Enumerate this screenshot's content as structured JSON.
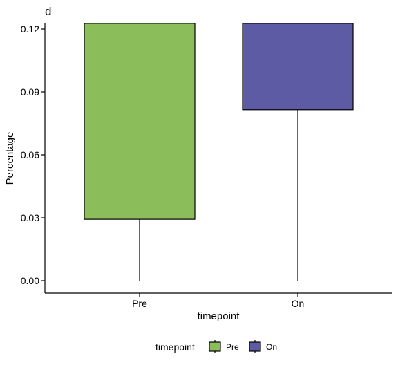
{
  "chart_data": {
    "type": "boxplot",
    "tag": "d",
    "xlabel": "timepoint",
    "ylabel": "Percentage",
    "categories": [
      "Pre",
      "On"
    ],
    "ylim": [
      -0.005,
      0.123
    ],
    "yticks": [
      "0.00",
      "0.03",
      "0.06",
      "0.09",
      "0.12"
    ],
    "ytick_values": [
      0.0,
      0.03,
      0.06,
      0.09,
      0.12
    ],
    "grid": false,
    "boxes": [
      {
        "category": "Pre",
        "lower_whisker": 0.0,
        "q1": 0.0293,
        "q3": 0.123,
        "upper_whisker": 0.123,
        "color": "#8BBD5A"
      },
      {
        "category": "On",
        "lower_whisker": 0.0,
        "q1": 0.0815,
        "q3": 0.123,
        "upper_whisker": 0.123,
        "color": "#5E5BA5"
      }
    ],
    "legend": {
      "title": "timepoint",
      "position": "bottom",
      "items": [
        {
          "label": "Pre",
          "color": "#8BBD5A"
        },
        {
          "label": "On",
          "color": "#5E5BA5"
        }
      ]
    }
  }
}
